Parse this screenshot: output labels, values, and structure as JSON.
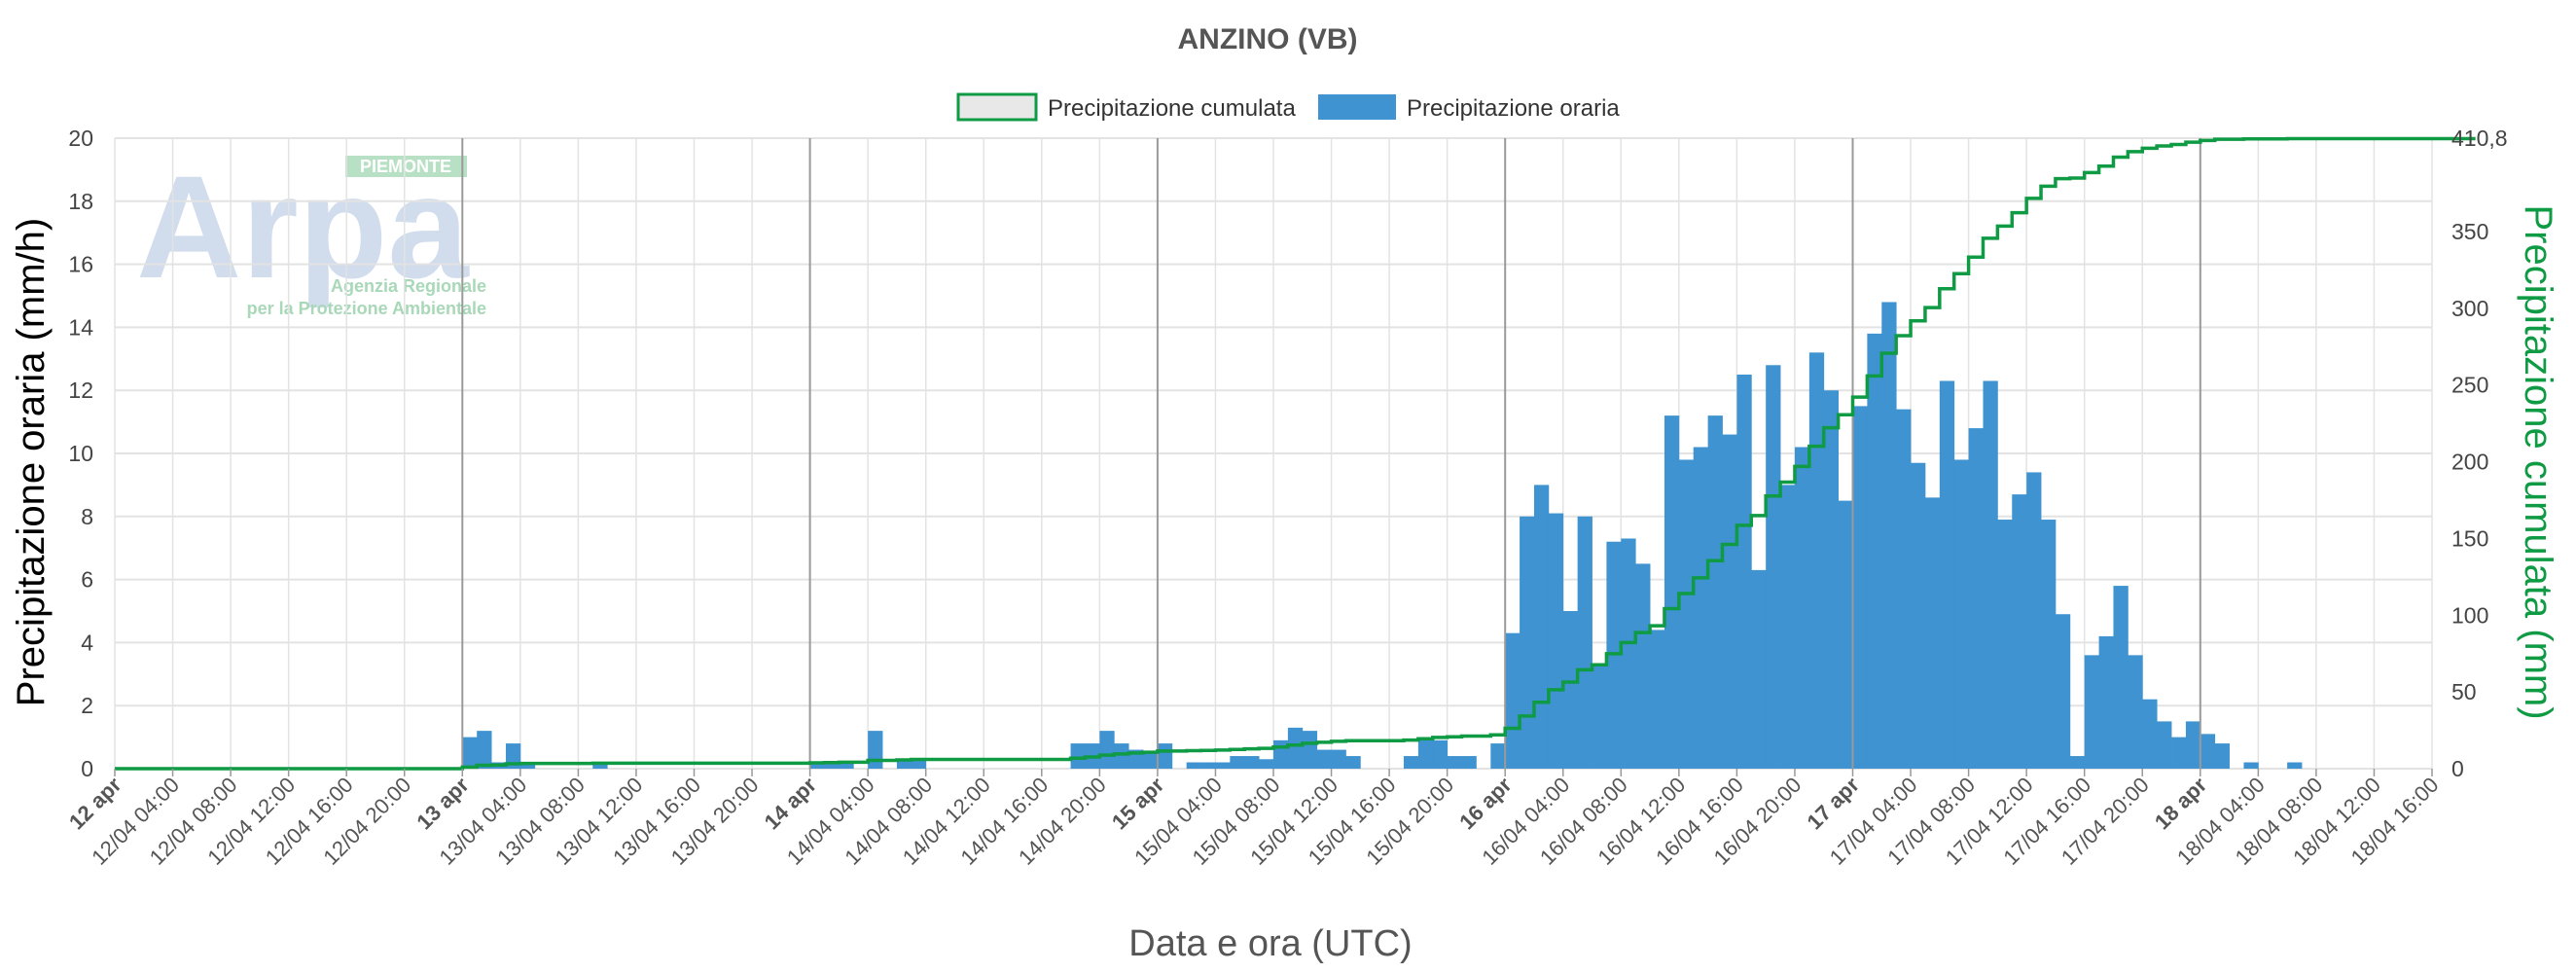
{
  "colors": {
    "bars": "#3f93d0",
    "cumulative": "#0f9a44",
    "grid": "#e3e3e3",
    "dayline": "#9a9a9a"
  },
  "logo": {
    "text": "Arpa",
    "region": "PIEMONTE",
    "line1": "Agenzia Regionale",
    "line2": "per la Protezione Ambientale"
  },
  "chart_data": {
    "type": "bar",
    "title": "ANZINO (VB)",
    "xlabel": "Data e ora (UTC)",
    "ylabel_left": "Precipitazione oraria (mm/h)",
    "ylabel_right": "Precipitazione cumulata (mm)",
    "legend": [
      "Precipitazione cumulata",
      "Precipitazione oraria"
    ],
    "legend_position": "top-center",
    "grid": true,
    "ylim_left": [
      0,
      20
    ],
    "yticks_left": [
      "0",
      "2",
      "4",
      "6",
      "8",
      "10",
      "12",
      "14",
      "16",
      "18",
      "20"
    ],
    "ylim_right": [
      0,
      410.8
    ],
    "yticks_right": [
      {
        "value": 0,
        "label": "0"
      },
      {
        "value": 50,
        "label": "50"
      },
      {
        "value": 100,
        "label": "100"
      },
      {
        "value": 150,
        "label": "150"
      },
      {
        "value": 200,
        "label": "200"
      },
      {
        "value": 250,
        "label": "250"
      },
      {
        "value": 300,
        "label": "300"
      },
      {
        "value": 350,
        "label": "350"
      },
      {
        "value": 410.8,
        "label": "410,8"
      }
    ],
    "x_start": "2024-04-12T00:00Z",
    "x_end": "2024-04-18T16:00Z",
    "xtick_labels": [
      {
        "label": "12 apr",
        "day": true
      },
      {
        "label": "12/04 04:00"
      },
      {
        "label": "12/04 08:00"
      },
      {
        "label": "12/04 12:00"
      },
      {
        "label": "12/04 16:00"
      },
      {
        "label": "12/04 20:00"
      },
      {
        "label": "13 apr",
        "day": true
      },
      {
        "label": "13/04 04:00"
      },
      {
        "label": "13/04 08:00"
      },
      {
        "label": "13/04 12:00"
      },
      {
        "label": "13/04 16:00"
      },
      {
        "label": "13/04 20:00"
      },
      {
        "label": "14 apr",
        "day": true
      },
      {
        "label": "14/04 04:00"
      },
      {
        "label": "14/04 08:00"
      },
      {
        "label": "14/04 12:00"
      },
      {
        "label": "14/04 16:00"
      },
      {
        "label": "14/04 20:00"
      },
      {
        "label": "15 apr",
        "day": true
      },
      {
        "label": "15/04 04:00"
      },
      {
        "label": "15/04 08:00"
      },
      {
        "label": "15/04 12:00"
      },
      {
        "label": "15/04 16:00"
      },
      {
        "label": "15/04 20:00"
      },
      {
        "label": "16 apr",
        "day": true
      },
      {
        "label": "16/04 04:00"
      },
      {
        "label": "16/04 08:00"
      },
      {
        "label": "16/04 12:00"
      },
      {
        "label": "16/04 16:00"
      },
      {
        "label": "16/04 20:00"
      },
      {
        "label": "17 apr",
        "day": true
      },
      {
        "label": "17/04 04:00"
      },
      {
        "label": "17/04 08:00"
      },
      {
        "label": "17/04 12:00"
      },
      {
        "label": "17/04 16:00"
      },
      {
        "label": "17/04 20:00"
      },
      {
        "label": "18 apr",
        "day": true
      },
      {
        "label": "18/04 04:00"
      },
      {
        "label": "18/04 08:00"
      },
      {
        "label": "18/04 12:00"
      },
      {
        "label": "18/04 16:00"
      }
    ],
    "hourly_start": "2024-04-12T00:00Z",
    "hourly_values": [
      0,
      0,
      0,
      0,
      0,
      0,
      0,
      0,
      0,
      0,
      0,
      0,
      0,
      0,
      0,
      0,
      0,
      0,
      0,
      0,
      0,
      0,
      0,
      0,
      1.0,
      1.2,
      0.2,
      0.8,
      0.2,
      0,
      0,
      0,
      0,
      0.2,
      0,
      0,
      0,
      0,
      0,
      0,
      0,
      0,
      0,
      0,
      0,
      0,
      0,
      0,
      0.2,
      0.2,
      0.2,
      0,
      1.2,
      0,
      0.3,
      0.3,
      0,
      0,
      0,
      0,
      0,
      0,
      0,
      0,
      0,
      0,
      0.8,
      0.8,
      1.2,
      0.8,
      0.6,
      0.5,
      0.8,
      0,
      0.2,
      0.2,
      0.2,
      0.4,
      0.4,
      0.3,
      0.9,
      1.3,
      1.2,
      0.6,
      0.6,
      0.4,
      0,
      0,
      0,
      0.4,
      0.9,
      0.9,
      0.4,
      0.4,
      0,
      0.8,
      4.3,
      8.0,
      9.0,
      8.1,
      5.0,
      8.0,
      3.3,
      7.2,
      7.3,
      6.5,
      4.4,
      11.2,
      9.8,
      10.2,
      11.2,
      10.6,
      12.5,
      6.3,
      12.8,
      9.0,
      10.2,
      13.2,
      12.0,
      8.5,
      11.5,
      13.8,
      14.8,
      11.4,
      9.7,
      8.6,
      12.3,
      9.8,
      10.8,
      12.3,
      7.9,
      8.7,
      9.4,
      7.9,
      4.9,
      0.4,
      3.6,
      4.2,
      5.8,
      3.6,
      2.2,
      1.5,
      1.0,
      1.5,
      1.1,
      0.8,
      0,
      0.2,
      0,
      0,
      0.2,
      0,
      0,
      0,
      0,
      0,
      0,
      0,
      0,
      0,
      0,
      0,
      0
    ],
    "cumulative_values": [
      0,
      0,
      0,
      0,
      0,
      0,
      0,
      0,
      0,
      0,
      0,
      0,
      0,
      0,
      0,
      0,
      0,
      0,
      0,
      0,
      0,
      0,
      0,
      0,
      1,
      2.2,
      2.4,
      3.2,
      3.4,
      3.4,
      3.4,
      3.4,
      3.4,
      3.6,
      3.6,
      3.6,
      3.6,
      3.6,
      3.6,
      3.6,
      3.6,
      3.6,
      3.6,
      3.6,
      3.6,
      3.6,
      3.6,
      3.6,
      3.8,
      4,
      4.2,
      4.2,
      5.4,
      5.4,
      5.7,
      6,
      6,
      6,
      6,
      6,
      6,
      6,
      6,
      6,
      6,
      6,
      6.8,
      7.6,
      8.8,
      9.6,
      10.2,
      10.7,
      11.5,
      11.5,
      11.7,
      11.9,
      12.1,
      12.5,
      12.9,
      13.2,
      14.1,
      15.4,
      16.6,
      17.2,
      17.8,
      18.2,
      18.2,
      18.2,
      18.2,
      18.6,
      19.5,
      20.4,
      20.8,
      21.2,
      21.2,
      22,
      26.3,
      34.3,
      43.3,
      51.4,
      56.4,
      64.4,
      67.7,
      74.9,
      82.2,
      88.7,
      93.1,
      104.3,
      114.1,
      124.3,
      135.5,
      146.1,
      158.6,
      164.9,
      177.7,
      186.7,
      196.9,
      210.1,
      222.1,
      230.6,
      242.1,
      255.9,
      270.7,
      282.1,
      291.8,
      300.4,
      312.7,
      322.5,
      333.3,
      345.6,
      353.5,
      362.2,
      371.6,
      379.5,
      384.4,
      384.8,
      388.4,
      392.6,
      398.4,
      402,
      404.2,
      405.7,
      406.7,
      408.2,
      409.3,
      410.1,
      410.1,
      410.3,
      410.3,
      410.3,
      410.5,
      410.5,
      410.5,
      410.5,
      410.5,
      410.5,
      410.5,
      410.5,
      410.5,
      410.5,
      410.5,
      410.5,
      410.5
    ]
  }
}
